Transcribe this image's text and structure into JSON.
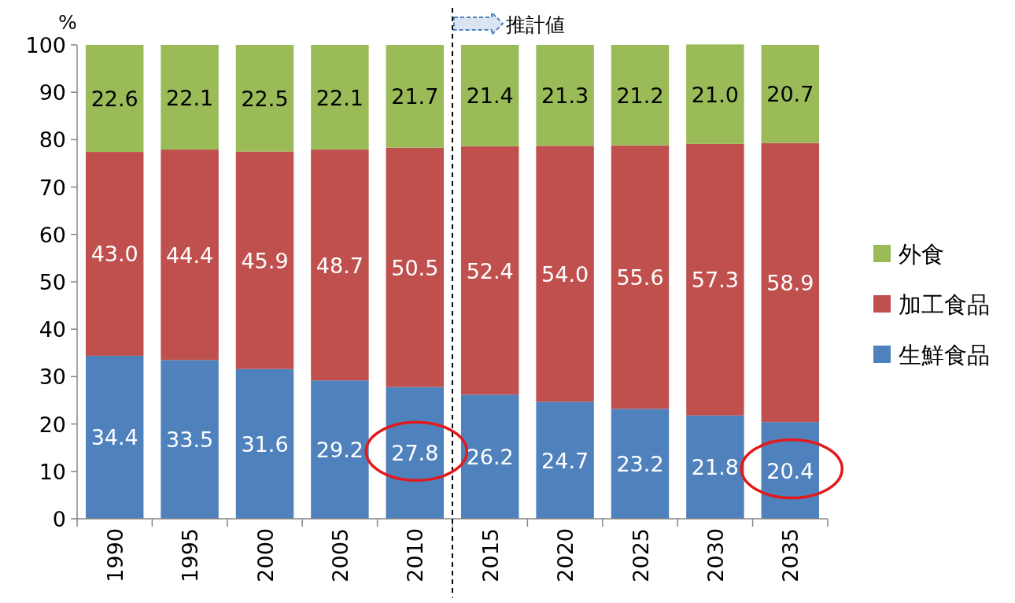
{
  "chart_data": {
    "type": "bar",
    "stacked": true,
    "ylabel": "%",
    "categories": [
      "1990",
      "1995",
      "2000",
      "2005",
      "2010",
      "2015",
      "2020",
      "2025",
      "2030",
      "2035"
    ],
    "series": [
      {
        "name": "生鮮食品",
        "color": "#4f81bd",
        "values": [
          34.4,
          33.5,
          31.6,
          29.2,
          27.8,
          26.2,
          24.7,
          23.2,
          21.8,
          20.4
        ],
        "value_labels": [
          "34.4",
          "33.5",
          "31.6",
          "29.2",
          "27.8",
          "26.2",
          "24.7",
          "23.2",
          "21.8",
          "20.4"
        ]
      },
      {
        "name": "加工食品",
        "color": "#c0504d",
        "values": [
          43.0,
          44.4,
          45.9,
          48.7,
          50.5,
          52.4,
          54.0,
          55.6,
          57.3,
          58.9
        ],
        "value_labels": [
          "43.0",
          "44.4",
          "45.9",
          "48.7",
          "50.5",
          "52.4",
          "54.0",
          "55.6",
          "57.3",
          "58.9"
        ]
      },
      {
        "name": "外食",
        "color": "#9bbb59",
        "values": [
          22.6,
          22.1,
          22.5,
          22.1,
          21.7,
          21.4,
          21.3,
          21.2,
          21.0,
          20.7
        ],
        "value_labels": [
          "22.6",
          "22.1",
          "22.5",
          "22.1",
          "21.7",
          "21.4",
          "21.3",
          "21.2",
          "21.0",
          "20.7"
        ]
      }
    ],
    "ylim": [
      0,
      100
    ],
    "yticks": [
      0,
      10,
      20,
      30,
      40,
      50,
      60,
      70,
      80,
      90,
      100
    ],
    "annotations": [
      "推計値"
    ],
    "legend": "right"
  }
}
